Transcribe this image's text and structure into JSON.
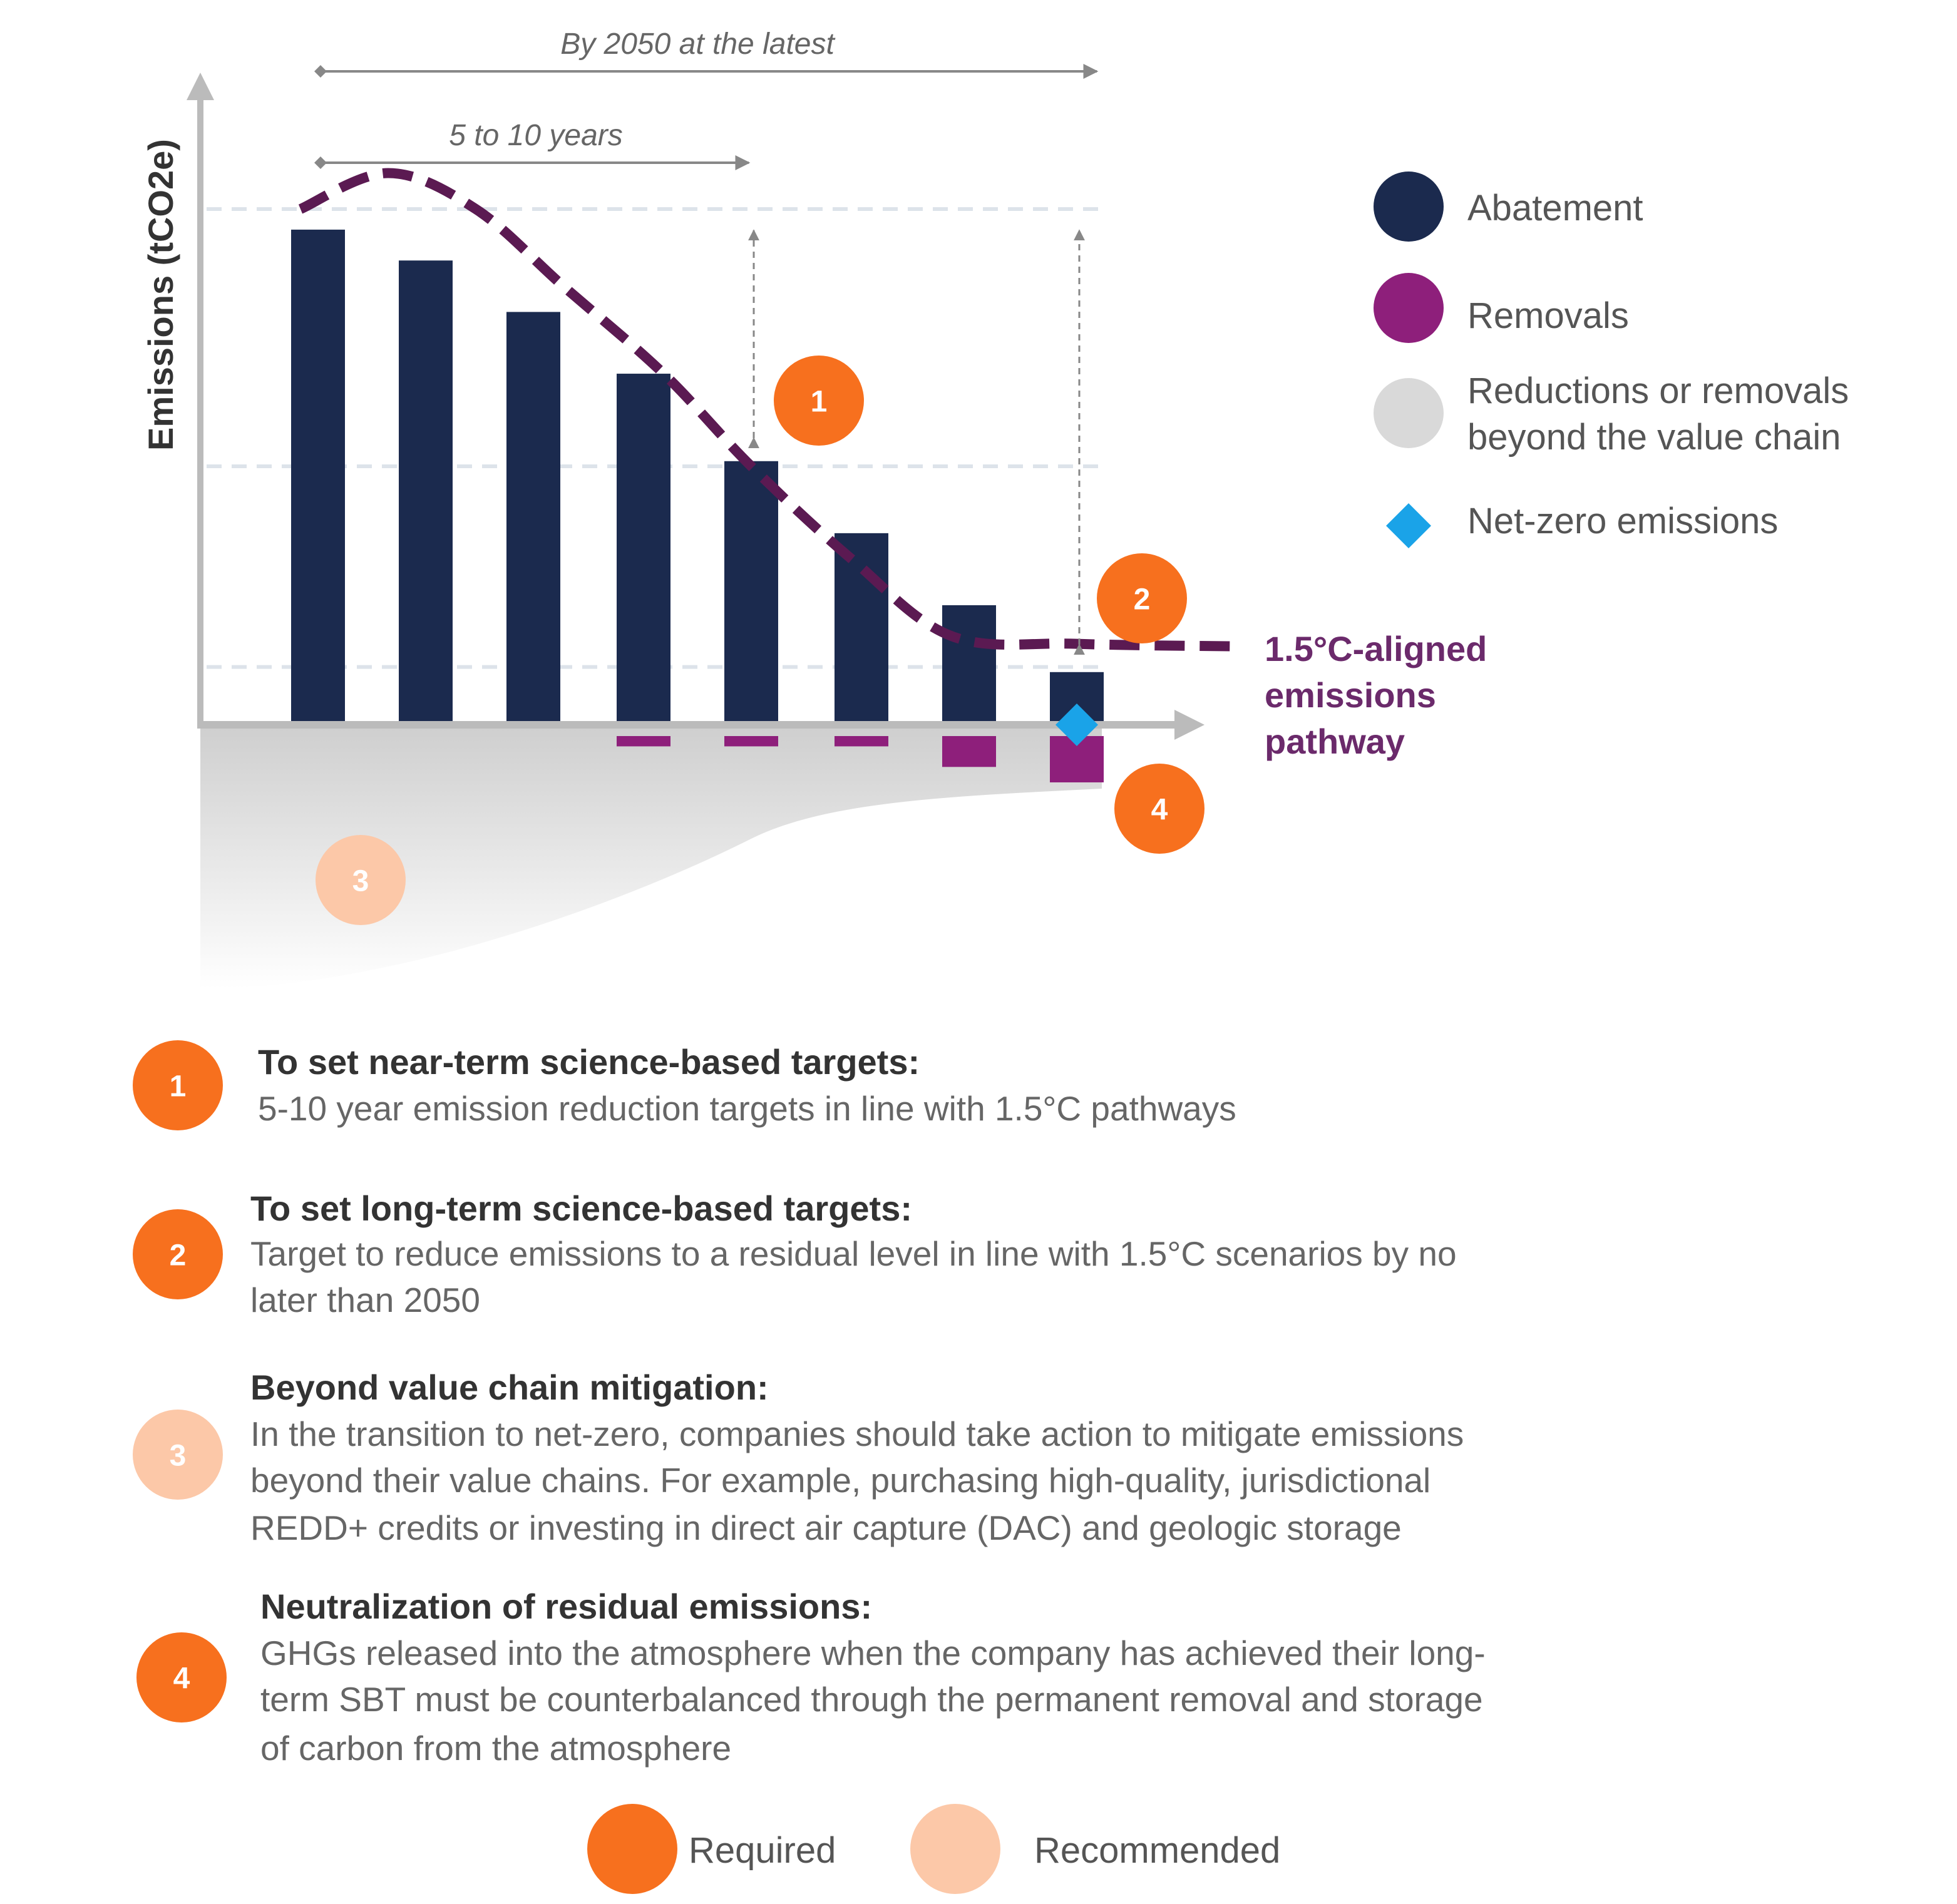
{
  "chart_data": {
    "type": "bar",
    "ylabel": "Emissions (tCO2e)",
    "xlabel": "",
    "ylim": [
      -15,
      115
    ],
    "grid": "dashed horizontal reference lines",
    "categories": [
      "",
      "",
      "",
      "",
      "",
      "",
      "",
      ""
    ],
    "series": [
      {
        "name": "Abatement",
        "color": "#1b2a4e",
        "values": [
          96,
          90,
          80,
          68,
          51,
          37,
          23,
          10
        ]
      },
      {
        "name": "Removals",
        "color": "#8e1f7b",
        "values": [
          0,
          0,
          0,
          -2,
          -2,
          -2,
          -6,
          -9
        ]
      }
    ],
    "pathway": {
      "name": "1.5°C-aligned emissions pathway",
      "label_lines": [
        "1.5°C-aligned",
        "emissions",
        "pathway"
      ],
      "color": "#5b1a52",
      "values": [
        100,
        107,
        100,
        85,
        68,
        50,
        32,
        17,
        15.5,
        15
      ]
    },
    "reference_lines": [
      100,
      50,
      11
    ],
    "net_zero_marker": {
      "bar_index": 7,
      "color": "#1aa3e8"
    },
    "annotations": {
      "span_long": "By 2050 at the latest",
      "span_short": "5 to 10 years"
    },
    "legend": {
      "placement": "right",
      "items": [
        {
          "label": "Abatement",
          "color": "#1b2a4e",
          "shape": "circle"
        },
        {
          "label": "Removals",
          "color": "#8e1f7b",
          "shape": "circle"
        },
        {
          "label_lines": [
            "Reductions or removals",
            "beyond the value chain"
          ],
          "color": "#d9d9d9",
          "shape": "circle"
        },
        {
          "label": "Net-zero emissions",
          "color": "#1aa3e8",
          "shape": "diamond"
        }
      ]
    }
  },
  "badges": {
    "required_color": "#f7701e",
    "recommended_color": "#fcc8a8"
  },
  "steps": [
    {
      "number": "1",
      "type": "required",
      "title": "To set near-term science-based targets:",
      "lines": [
        "5-10 year emission reduction targets in line with 1.5°C pathways"
      ]
    },
    {
      "number": "2",
      "type": "required",
      "title": "To set long-term science-based targets:",
      "lines": [
        "Target to reduce emissions to a residual level in line with 1.5°C scenarios by no",
        "later than 2050"
      ]
    },
    {
      "number": "3",
      "type": "recommended",
      "title": "Beyond value chain mitigation:",
      "lines": [
        "In the transition to net-zero, companies should take action to mitigate emissions",
        "beyond their value chains. For example, purchasing high-quality, jurisdictional",
        "REDD+ credits or investing in direct air capture (DAC) and geologic storage"
      ]
    },
    {
      "number": "4",
      "type": "required",
      "title": "Neutralization of residual emissions:",
      "lines": [
        "GHGs released into the atmosphere when the company has achieved their long-",
        "term SBT must be counterbalanced through the permanent removal and storage",
        "of carbon from the atmosphere"
      ]
    }
  ],
  "footer_legend": {
    "required": "Required",
    "recommended": "Recommended"
  }
}
